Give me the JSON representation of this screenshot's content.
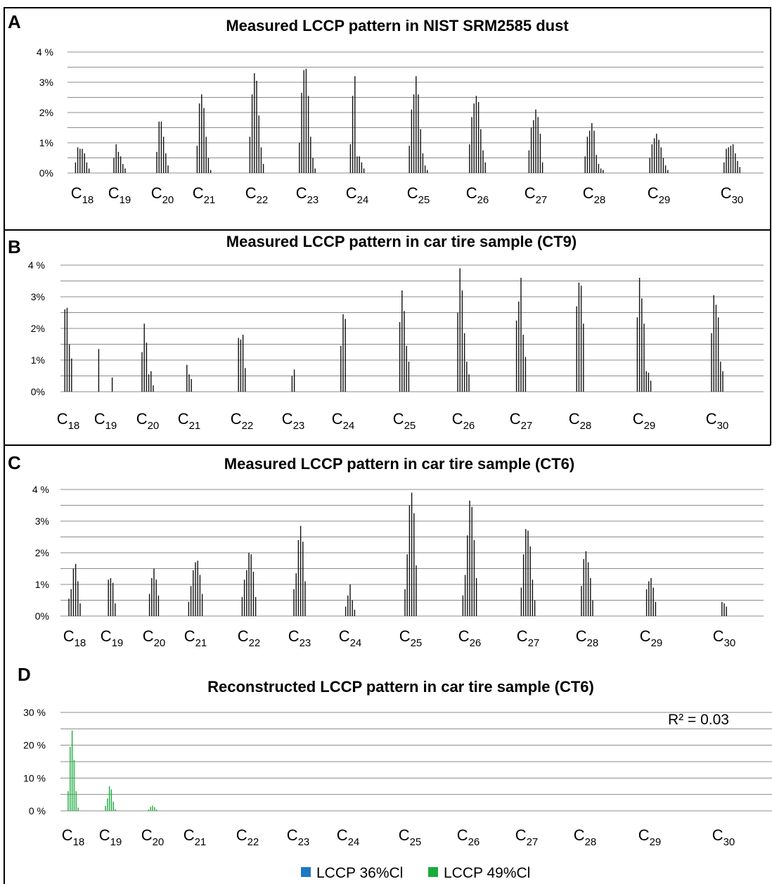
{
  "chart_data": [
    {
      "panel": "A",
      "type": "bar",
      "title": "Measured LCCP pattern in NIST SRM2585 dust",
      "ytick_labels": [
        "0%",
        "1%",
        "2%",
        "3%",
        "4 %"
      ],
      "ylim": [
        0,
        4
      ],
      "grid": true,
      "categories": [
        "C18",
        "C19",
        "C20",
        "C21",
        "C22",
        "C23",
        "C24",
        "C25",
        "C26",
        "C27",
        "C28",
        "C29",
        "C30"
      ],
      "values": [
        [
          0.35,
          0.85,
          0.8,
          0.8,
          0.65,
          0.35,
          0.15
        ],
        [
          0.5,
          0.95,
          0.7,
          0.55,
          0.3,
          0.15
        ],
        [
          0.7,
          1.7,
          1.7,
          1.2,
          0.65,
          0.25
        ],
        [
          0.9,
          2.3,
          2.6,
          2.15,
          1.2,
          0.5,
          0.1
        ],
        [
          1.2,
          2.6,
          3.3,
          3.05,
          1.9,
          0.85,
          0.3
        ],
        [
          1.0,
          2.65,
          3.4,
          3.45,
          2.55,
          1.2,
          0.5,
          0.15
        ],
        [
          0.95,
          2.55,
          3.2,
          0.55,
          0.55,
          0.35,
          0.15
        ],
        [
          0.9,
          2.1,
          2.6,
          3.2,
          2.6,
          1.45,
          0.65,
          0.25,
          0.1
        ],
        [
          0.95,
          1.85,
          2.3,
          2.55,
          2.35,
          1.45,
          0.75,
          0.35
        ],
        [
          0.75,
          1.5,
          1.75,
          2.1,
          1.85,
          1.3,
          0.35
        ],
        [
          0.55,
          1.2,
          1.4,
          1.65,
          1.4,
          0.6,
          0.3,
          0.15,
          0.1
        ],
        [
          0.5,
          0.95,
          1.15,
          1.3,
          1.1,
          0.85,
          0.5,
          0.25,
          0.1
        ],
        [
          0.35,
          0.8,
          0.85,
          0.9,
          0.95,
          0.65,
          0.4,
          0.2
        ]
      ]
    },
    {
      "panel": "B",
      "type": "bar",
      "title": "Measured LCCP pattern in car tire sample (CT9)",
      "ytick_labels": [
        "0%",
        "1%",
        "2%",
        "3%",
        "4 %"
      ],
      "ylim": [
        0,
        4
      ],
      "grid": true,
      "categories": [
        "C18",
        "C19",
        "C20",
        "C21",
        "C22",
        "C23",
        "C24",
        "C25",
        "C26",
        "C27",
        "C28",
        "C29",
        "C30"
      ],
      "values": [
        [
          2.6,
          2.65,
          1.5,
          1.05
        ],
        [
          1.35,
          0,
          0,
          0,
          0,
          0,
          0.45
        ],
        [
          1.25,
          2.15,
          1.55,
          0.55,
          0.65,
          0.2
        ],
        [
          0.85,
          0.55,
          0.4
        ],
        [
          1.7,
          1.65,
          1.8,
          0.75
        ],
        [
          0.5,
          0.7
        ],
        [
          1.45,
          2.45,
          2.3
        ],
        [
          2.2,
          3.2,
          2.55,
          1.45,
          0.95
        ],
        [
          2.5,
          3.9,
          3.2,
          1.85,
          0.95,
          0.55
        ],
        [
          2.25,
          2.85,
          3.6,
          1.8,
          1.1
        ],
        [
          2.7,
          3.45,
          3.35,
          2.15
        ],
        [
          2.35,
          3.6,
          2.95,
          2.15,
          0.65,
          0.6,
          0.35
        ],
        [
          1.85,
          3.05,
          2.75,
          2.35,
          0.95,
          0.65
        ]
      ]
    },
    {
      "panel": "C",
      "type": "bar",
      "title": "Measured LCCP pattern in car tire sample (CT6)",
      "ytick_labels": [
        "0%",
        "1%",
        "2%",
        "3%",
        "4 %"
      ],
      "ylim": [
        0,
        4
      ],
      "grid": true,
      "categories": [
        "C18",
        "C19",
        "C20",
        "C21",
        "C22",
        "C23",
        "C24",
        "C25",
        "C26",
        "C27",
        "C28",
        "C29",
        "C30"
      ],
      "values": [
        [
          0.55,
          0.85,
          1.5,
          1.65,
          1.1,
          0.4
        ],
        [
          1.15,
          1.2,
          1.05,
          0.4
        ],
        [
          0.7,
          1.2,
          1.5,
          1.15,
          0.65
        ],
        [
          0.45,
          0.95,
          1.45,
          1.7,
          1.75,
          1.3,
          0.7
        ],
        [
          0.6,
          1.15,
          1.45,
          2.0,
          1.95,
          1.4,
          0.6
        ],
        [
          0.85,
          1.35,
          2.4,
          2.85,
          2.35,
          1.1
        ],
        [
          0.3,
          0.65,
          1.0,
          0.5,
          0.2
        ],
        [
          0.85,
          1.95,
          3.5,
          3.9,
          3.25,
          1.6
        ],
        [
          0.65,
          1.3,
          2.55,
          3.65,
          3.45,
          2.4,
          1.2
        ],
        [
          0.9,
          1.95,
          2.75,
          2.7,
          2.2,
          1.15,
          0.5
        ],
        [
          0.95,
          1.8,
          2.05,
          1.7,
          1.2,
          0.5
        ],
        [
          0.85,
          1.1,
          1.2,
          0.9,
          0.45
        ],
        [
          0.45,
          0.4,
          0.3
        ]
      ]
    },
    {
      "panel": "D",
      "type": "bar",
      "title": "Reconstructed LCCP pattern in car tire sample (CT6)",
      "ytick_labels": [
        "0 %",
        "10 %",
        "20 %",
        "30 %"
      ],
      "ylim": [
        0,
        30
      ],
      "grid": true,
      "annotation": "R² = 0.03",
      "legend": {
        "position": "bottom",
        "entries": [
          {
            "label": "LCCP 36%Cl",
            "color": "#1f77c1"
          },
          {
            "label": "LCCP 49%Cl",
            "color": "#1aab3c"
          }
        ]
      },
      "categories": [
        "C18",
        "C19",
        "C20",
        "C21",
        "C22",
        "C23",
        "C24",
        "C25",
        "C26",
        "C27",
        "C28",
        "C29",
        "C30"
      ],
      "series": [
        {
          "name": "LCCP 36%Cl",
          "values": [
            [],
            [],
            [],
            [],
            [],
            [],
            [],
            [],
            [],
            [],
            [],
            [],
            []
          ]
        },
        {
          "name": "LCCP 49%Cl",
          "values": [
            [
              6.0,
              19.5,
              24.5,
              15.5,
              6.0,
              1.0
            ],
            [
              1.5,
              3.8,
              7.5,
              6.5,
              2.8,
              0.5
            ],
            [
              0.4,
              1.2,
              1.6,
              1.1,
              0.4
            ],
            [],
            [],
            [],
            [],
            [],
            [],
            [],
            [],
            [],
            []
          ]
        }
      ]
    }
  ],
  "colors": {
    "bar": "#111111",
    "grid": "#8c8c8c",
    "green": "#1aab3c",
    "blue": "#1f77c1"
  }
}
